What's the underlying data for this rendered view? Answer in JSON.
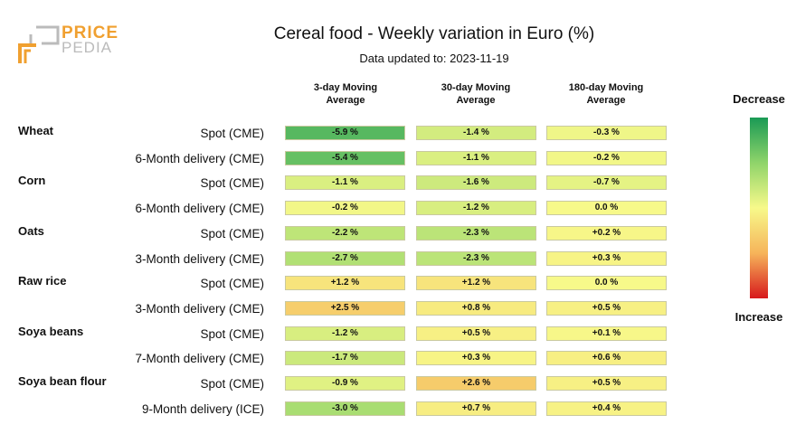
{
  "logo": {
    "text_price": "PRICE",
    "text_pedia": "PEDIA"
  },
  "header": {
    "title": "Cereal food - Weekly variation in Euro (%)",
    "subtitle": "Data updated to: 2023-11-19"
  },
  "legend": {
    "top": "Decrease",
    "bottom": "Increase",
    "colors": [
      "#1a9a55",
      "#8fd46a",
      "#f7f98a",
      "#f6b45a",
      "#d7191c"
    ]
  },
  "chart_data": {
    "type": "table",
    "title": "Cereal food - Weekly variation in Euro (%)",
    "columns": [
      {
        "line1": "3-day Moving",
        "line2": "Average"
      },
      {
        "line1": "30-day Moving",
        "line2": "Average"
      },
      {
        "line1": "180-day Moving",
        "line2": "Average"
      }
    ],
    "groups": [
      {
        "name": "Wheat",
        "rows": [
          {
            "label": "Spot (CME)",
            "values": [
              -5.9,
              -1.4,
              -0.3
            ],
            "text": [
              "-5.9 %",
              "-1.4 %",
              "-0.3 %"
            ]
          },
          {
            "label": "6-Month delivery (CME)",
            "values": [
              -5.4,
              -1.1,
              -0.2
            ],
            "text": [
              "-5.4 %",
              "-1.1 %",
              "-0.2 %"
            ]
          }
        ]
      },
      {
        "name": "Corn",
        "rows": [
          {
            "label": "Spot (CME)",
            "values": [
              -1.1,
              -1.6,
              -0.7
            ],
            "text": [
              "-1.1 %",
              "-1.6 %",
              "-0.7 %"
            ]
          },
          {
            "label": "6-Month delivery (CME)",
            "values": [
              -0.2,
              -1.2,
              0.0
            ],
            "text": [
              "-0.2 %",
              "-1.2 %",
              "0.0 %"
            ]
          }
        ]
      },
      {
        "name": "Oats",
        "rows": [
          {
            "label": "Spot (CME)",
            "values": [
              -2.2,
              -2.3,
              0.2
            ],
            "text": [
              "-2.2 %",
              "-2.3 %",
              "+0.2 %"
            ]
          },
          {
            "label": "3-Month delivery (CME)",
            "values": [
              -2.7,
              -2.3,
              0.3
            ],
            "text": [
              "-2.7 %",
              "-2.3 %",
              "+0.3 %"
            ]
          }
        ]
      },
      {
        "name": "Raw rice",
        "rows": [
          {
            "label": "Spot (CME)",
            "values": [
              1.2,
              1.2,
              0.0
            ],
            "text": [
              "+1.2 %",
              "+1.2 %",
              "0.0 %"
            ]
          },
          {
            "label": "3-Month delivery (CME)",
            "values": [
              2.5,
              0.8,
              0.5
            ],
            "text": [
              "+2.5 %",
              "+0.8 %",
              "+0.5 %"
            ]
          }
        ]
      },
      {
        "name": "Soya beans",
        "rows": [
          {
            "label": "Spot (CME)",
            "values": [
              -1.2,
              0.5,
              0.1
            ],
            "text": [
              "-1.2 %",
              "+0.5 %",
              "+0.1 %"
            ]
          },
          {
            "label": "7-Month delivery (CME)",
            "values": [
              -1.7,
              0.3,
              0.6
            ],
            "text": [
              "-1.7 %",
              "+0.3 %",
              "+0.6 %"
            ]
          }
        ]
      },
      {
        "name": "Soya bean flour",
        "rows": [
          {
            "label": "Spot (CME)",
            "values": [
              -0.9,
              2.6,
              0.5
            ],
            "text": [
              "-0.9 %",
              "+2.6 %",
              "+0.5 %"
            ]
          },
          {
            "label": "9-Month delivery (ICE)",
            "values": [
              -3.0,
              0.7,
              0.4
            ],
            "text": [
              "-3.0 %",
              "+0.7 %",
              "+0.4 %"
            ]
          }
        ]
      }
    ]
  }
}
